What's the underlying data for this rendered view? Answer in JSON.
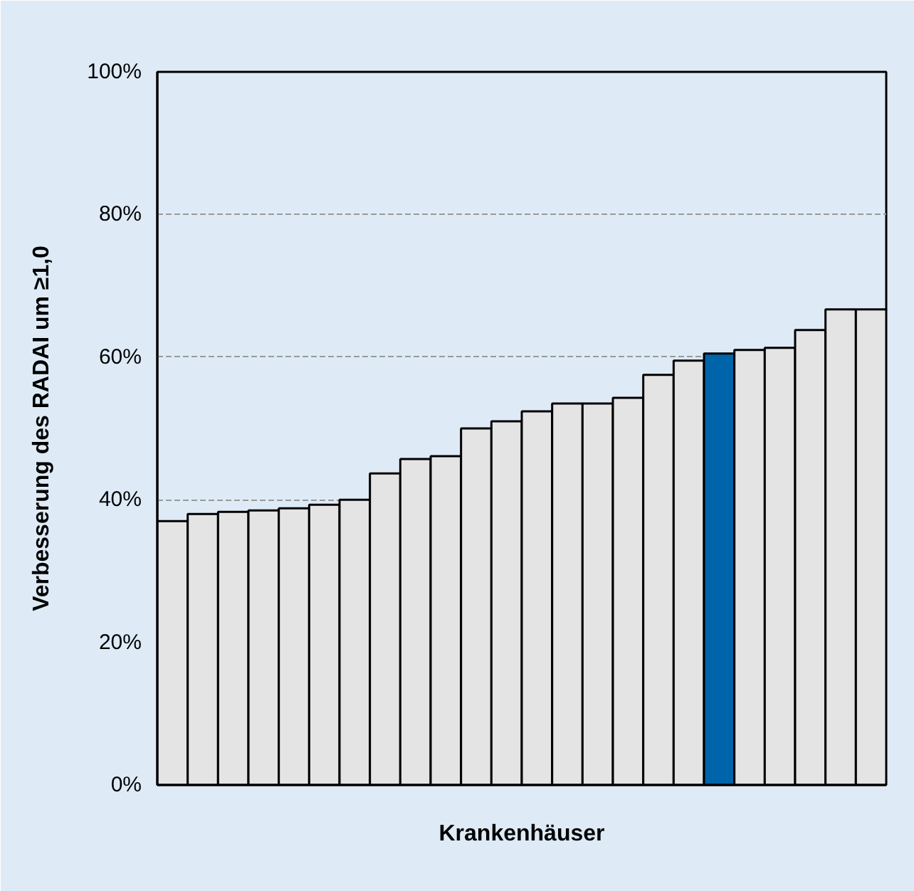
{
  "chart_data": {
    "type": "bar",
    "xlabel": "Krankenhäuser",
    "ylabel": "Verbesserung des RADAI um ≥1,0",
    "categories": [
      null,
      null,
      null,
      null,
      null,
      null,
      null,
      null,
      null,
      null,
      null,
      null,
      null,
      null,
      null,
      null,
      null,
      null,
      null,
      null,
      null,
      null,
      null,
      null
    ],
    "values": [
      37,
      38,
      38.3,
      38.5,
      38.8,
      39.3,
      40,
      43.7,
      45.7,
      46.1,
      50,
      51,
      52.4,
      53.5,
      53.5,
      54.3,
      57.5,
      59.5,
      60.5,
      61,
      61.3,
      63.8,
      66.7,
      66.7
    ],
    "colors": [
      "#e4e4e4",
      "#e4e4e4",
      "#e4e4e4",
      "#e4e4e4",
      "#e4e4e4",
      "#e4e4e4",
      "#e4e4e4",
      "#e4e4e4",
      "#e4e4e4",
      "#e4e4e4",
      "#e4e4e4",
      "#e4e4e4",
      "#e4e4e4",
      "#e4e4e4",
      "#e4e4e4",
      "#e4e4e4",
      "#e4e4e4",
      "#e4e4e4",
      "#0064aa",
      "#e4e4e4",
      "#e4e4e4",
      "#e4e4e4",
      "#e4e4e4",
      "#e4e4e4"
    ],
    "ylim": [
      0,
      100
    ],
    "yticks": [
      {
        "value": 0,
        "label": "0%"
      },
      {
        "value": 20,
        "label": "20%"
      },
      {
        "value": 40,
        "label": "40%"
      },
      {
        "value": 60,
        "label": "60%"
      },
      {
        "value": 80,
        "label": "80%"
      },
      {
        "value": 100,
        "label": "100%"
      }
    ],
    "grid": "y"
  }
}
